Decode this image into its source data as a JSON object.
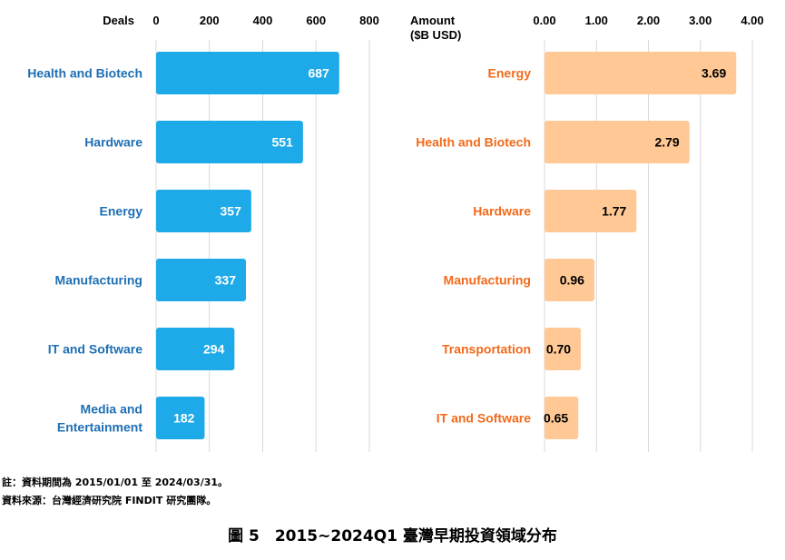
{
  "chart_data": [
    {
      "type": "bar",
      "orientation": "horizontal",
      "axis_title": "Deals",
      "categories": [
        "Health and Biotech",
        "Hardware",
        "Energy",
        "Manufacturing",
        "IT and Software",
        "Media and Entertainment"
      ],
      "category_lines": [
        [
          "Health and Biotech"
        ],
        [
          "Hardware"
        ],
        [
          "Energy"
        ],
        [
          "Manufacturing"
        ],
        [
          "IT and Software"
        ],
        [
          "Media and",
          "Entertainment"
        ]
      ],
      "values": [
        687,
        551,
        357,
        337,
        294,
        182
      ],
      "value_labels": [
        "687",
        "551",
        "357",
        "337",
        "294",
        "182"
      ],
      "xlim": [
        0,
        800
      ],
      "ticks": [
        0,
        200,
        400,
        600,
        800
      ],
      "tick_labels": [
        "0",
        "200",
        "400",
        "600",
        "800"
      ],
      "grid": true,
      "colors": {
        "bar": "#1eaae8",
        "category_text": "#1f6fb4",
        "value_text": "#ffffff"
      }
    },
    {
      "type": "bar",
      "orientation": "horizontal",
      "axis_title_lines": [
        "Amount",
        "($B USD)"
      ],
      "categories": [
        "Energy",
        "Health and Biotech",
        "Hardware",
        "Manufacturing",
        "Transportation",
        "IT and Software"
      ],
      "category_lines": [
        [
          "Energy"
        ],
        [
          "Health and Biotech"
        ],
        [
          "Hardware"
        ],
        [
          "Manufacturing"
        ],
        [
          "Transportation"
        ],
        [
          "IT and Software"
        ]
      ],
      "values": [
        3.69,
        2.79,
        1.77,
        0.96,
        0.7,
        0.65
      ],
      "value_labels": [
        "3.69",
        "2.79",
        "1.77",
        "0.96",
        "0.70",
        "0.65"
      ],
      "xlim": [
        0,
        4
      ],
      "ticks": [
        0,
        1,
        2,
        3,
        4
      ],
      "tick_labels": [
        "0.00",
        "1.00",
        "2.00",
        "3.00",
        "4.00"
      ],
      "grid": true,
      "colors": {
        "bar": "#ffc894",
        "category_text": "#f26a1b",
        "value_text": "#000000"
      }
    }
  ],
  "notes": {
    "period": "註：資料期間為 2015/01/01 至 2024/03/31。",
    "source": "資料來源：台灣經濟研究院 FINDIT 研究團隊。"
  },
  "caption": "圖 5　2015~2024Q1 臺灣早期投資領域分布"
}
